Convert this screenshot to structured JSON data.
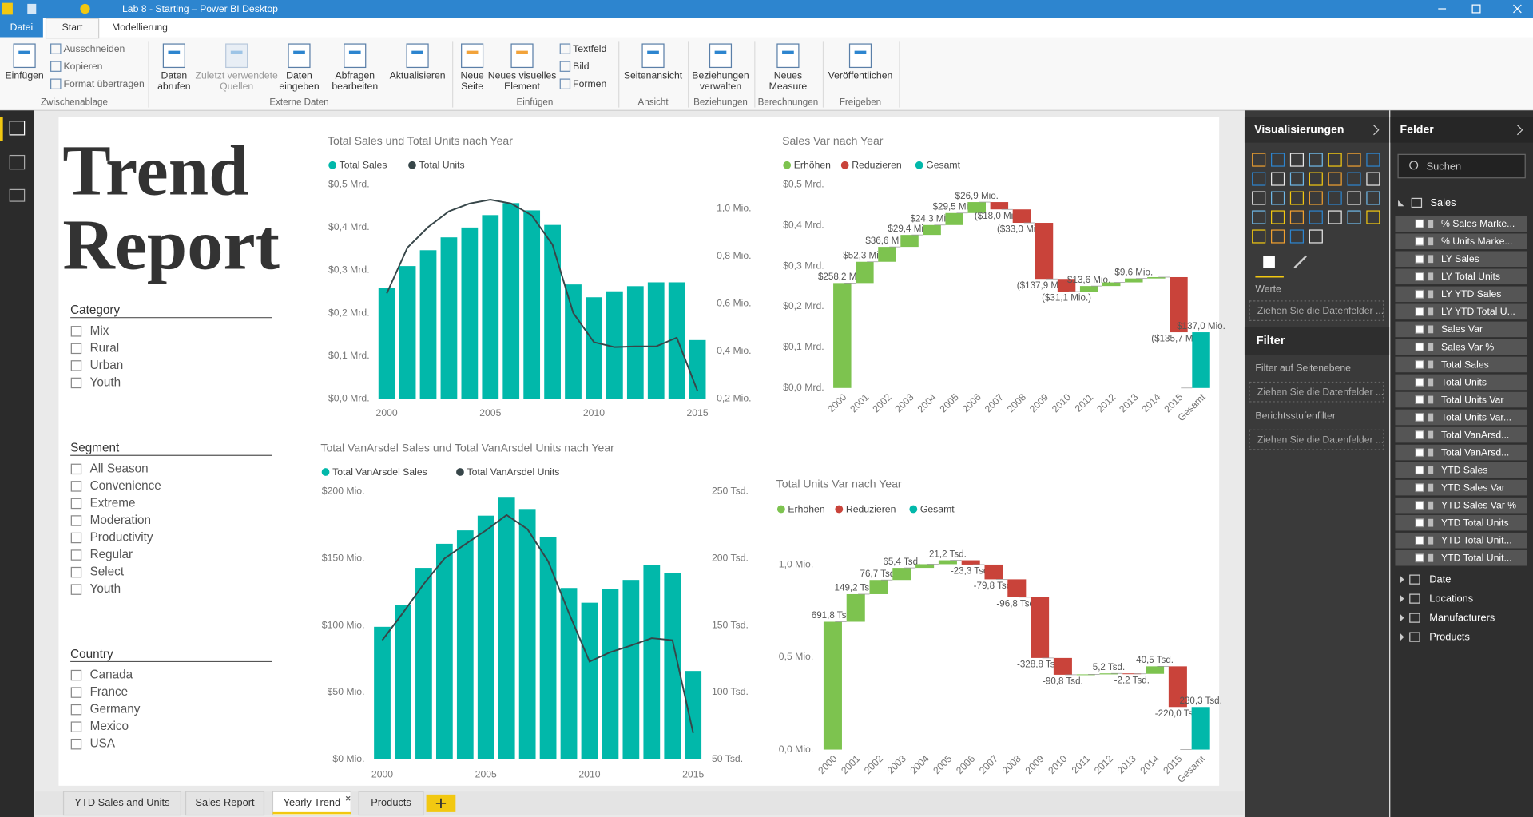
{
  "window": {
    "title": "Lab 8 - Starting – Power BI Desktop"
  },
  "ribbon": {
    "tabs": [
      "Datei",
      "Start",
      "Modellierung"
    ],
    "groups": [
      {
        "label": "Zwischenablage",
        "big": [
          [
            "Einfügen"
          ]
        ],
        "small": [
          "Ausschneiden",
          "Kopieren",
          "Format übertragen"
        ]
      },
      {
        "label": "Externe Daten",
        "big": [
          [
            "Daten",
            "abrufen"
          ],
          [
            "Zuletzt verwendete",
            "Quellen"
          ],
          [
            "Daten",
            "eingeben"
          ],
          [
            "Abfragen",
            "bearbeiten"
          ],
          [
            "Aktualisieren"
          ]
        ]
      },
      {
        "label": "Einfügen",
        "big": [
          [
            "Neue",
            "Seite"
          ],
          [
            "Neues visuelles",
            "Element"
          ]
        ],
        "small": [
          "Textfeld",
          "Bild",
          "Formen"
        ]
      },
      {
        "label": "Ansicht",
        "big": [
          [
            "Seitenansicht"
          ]
        ]
      },
      {
        "label": "Beziehungen",
        "big": [
          [
            "Beziehungen",
            "verwalten"
          ]
        ]
      },
      {
        "label": "Berechnungen",
        "big": [
          [
            "Neues",
            "Measure"
          ]
        ]
      },
      {
        "label": "Freigeben",
        "big": [
          [
            "Veröffentlichen"
          ]
        ]
      }
    ]
  },
  "report": {
    "title": [
      "Trend",
      "Report"
    ],
    "slicers": [
      {
        "title": "Category",
        "items": [
          "Mix",
          "Rural",
          "Urban",
          "Youth"
        ]
      },
      {
        "title": "Segment",
        "items": [
          "All Season",
          "Convenience",
          "Extreme",
          "Moderation",
          "Productivity",
          "Regular",
          "Select",
          "Youth"
        ]
      },
      {
        "title": "Country",
        "items": [
          "Canada",
          "France",
          "Germany",
          "Mexico",
          "USA"
        ]
      }
    ]
  },
  "chart_data": [
    {
      "type": "combo",
      "title": "Total Sales und Total Units nach Year",
      "x": [
        2000,
        2001,
        2002,
        2003,
        2004,
        2005,
        2006,
        2007,
        2008,
        2009,
        2010,
        2011,
        2012,
        2013,
        2014,
        2015
      ],
      "xlim": [
        1999.5,
        2015.5
      ],
      "xticks": [
        2000,
        2005,
        2010,
        2015
      ],
      "ylim": [
        0,
        0.5
      ],
      "yticks": [
        {
          "value": 0,
          "label": "$0,0 Mrd."
        },
        {
          "value": 0.1,
          "label": "$0,1 Mrd."
        },
        {
          "value": 0.2,
          "label": "$0,2 Mrd."
        },
        {
          "value": 0.3,
          "label": "$0,3 Mrd."
        },
        {
          "value": 0.4,
          "label": "$0,4 Mrd."
        },
        {
          "value": 0.5,
          "label": "$0,5 Mrd."
        }
      ],
      "y2lim": [
        0.2,
        1.1
      ],
      "y2ticks": [
        {
          "value": 0.2,
          "label": "0,2 Mio."
        },
        {
          "value": 0.4,
          "label": "0,4 Mio."
        },
        {
          "value": 0.6,
          "label": "0,6 Mio."
        },
        {
          "value": 0.8,
          "label": "0,8 Mio."
        },
        {
          "value": 1.0,
          "label": "1,0 Mio."
        }
      ],
      "grid": false,
      "series": [
        {
          "name": "Total Sales",
          "type": "bar",
          "color": "#01b8aa",
          "values": [
            0.258,
            0.31,
            0.347,
            0.377,
            0.4,
            0.429,
            0.457,
            0.44,
            0.406,
            0.267,
            0.237,
            0.251,
            0.263,
            0.272,
            0.272,
            0.137
          ]
        },
        {
          "name": "Total Units",
          "type": "line",
          "axis": "y2",
          "color": "#374649",
          "values": [
            0.643,
            0.836,
            0.922,
            0.988,
            1.021,
            1.037,
            1.021,
            0.971,
            0.848,
            0.561,
            0.438,
            0.417,
            0.42,
            0.42,
            0.457,
            0.233
          ]
        }
      ]
    },
    {
      "type": "waterfall",
      "title": "Sales Var nach Year",
      "legend": [
        {
          "name": "Erhöhen",
          "color": "#7dc34f"
        },
        {
          "name": "Reduzieren",
          "color": "#c9433a"
        },
        {
          "name": "Gesamt",
          "color": "#01b8aa"
        }
      ],
      "categories": [
        "2000",
        "2001",
        "2002",
        "2003",
        "2004",
        "2005",
        "2006",
        "2007",
        "2008",
        "2009",
        "2010",
        "2011",
        "2012",
        "2013",
        "2014",
        "2015",
        "Gesamt"
      ],
      "values": [
        0.2582,
        0.0523,
        0.0366,
        0.0294,
        0.0243,
        0.0295,
        0.0269,
        -0.018,
        -0.033,
        -0.1379,
        -0.0311,
        0.0136,
        0.009,
        0.0096,
        0.0033,
        -0.1357,
        0.137
      ],
      "value_labels": [
        "$258,2 Mio.",
        "$52,3 Mio.",
        "$36,6 Mio.",
        "$29,4 Mio.",
        "$24,3 Mio.",
        "$29,5 Mio.",
        "$26,9 Mio.",
        "($18,0 Mio.)",
        "($33,0 Mio.)",
        "($137,9 Mio.)",
        "($31,1 Mio.)",
        "$13,6 Mio.",
        null,
        "$9,6 Mio.",
        null,
        "($135,7 Mio.)",
        "$137,0 Mio."
      ],
      "ylim": [
        0,
        0.5
      ],
      "yticks": [
        {
          "value": 0,
          "label": "$0,0 Mrd."
        },
        {
          "value": 0.1,
          "label": "$0,1 Mrd."
        },
        {
          "value": 0.2,
          "label": "$0,2 Mrd."
        },
        {
          "value": 0.3,
          "label": "$0,3 Mrd."
        },
        {
          "value": 0.4,
          "label": "$0,4 Mrd."
        },
        {
          "value": 0.5,
          "label": "$0,5 Mrd."
        }
      ],
      "grid": false
    },
    {
      "type": "combo",
      "title": "Total VanArsdel Sales und Total VanArsdel Units nach Year",
      "x": [
        2000,
        2001,
        2002,
        2003,
        2004,
        2005,
        2006,
        2007,
        2008,
        2009,
        2010,
        2011,
        2012,
        2013,
        2014,
        2015
      ],
      "xlim": [
        1999.5,
        2015.5
      ],
      "xticks": [
        2000,
        2005,
        2010,
        2015
      ],
      "ylim": [
        0,
        200
      ],
      "yticks": [
        {
          "value": 0,
          "label": "$0 Mio."
        },
        {
          "value": 50,
          "label": "$50 Mio."
        },
        {
          "value": 100,
          "label": "$100 Mio."
        },
        {
          "value": 150,
          "label": "$150 Mio."
        },
        {
          "value": 200,
          "label": "$200 Mio."
        }
      ],
      "y2lim": [
        50,
        250
      ],
      "y2ticks": [
        {
          "value": 50,
          "label": "50 Tsd."
        },
        {
          "value": 100,
          "label": "100 Tsd."
        },
        {
          "value": 150,
          "label": "150 Tsd."
        },
        {
          "value": 200,
          "label": "200 Tsd."
        },
        {
          "value": 250,
          "label": "250 Tsd."
        }
      ],
      "grid": false,
      "series": [
        {
          "name": "Total VanArsdel Sales",
          "type": "bar",
          "color": "#01b8aa",
          "values": [
            99,
            115,
            143,
            161,
            171,
            182,
            196,
            187,
            166,
            128,
            117,
            127,
            134,
            145,
            139,
            66
          ]
        },
        {
          "name": "Total VanArsdel Units",
          "type": "line",
          "axis": "y2",
          "color": "#374649",
          "values": [
            139,
            159.5,
            181,
            200,
            210.6,
            221,
            232.5,
            222,
            198,
            159.5,
            123,
            130,
            135,
            140.5,
            139,
            69.7
          ]
        }
      ]
    },
    {
      "type": "waterfall",
      "title": "Total Units Var nach Year",
      "legend": [
        {
          "name": "Erhöhen",
          "color": "#7dc34f"
        },
        {
          "name": "Reduzieren",
          "color": "#c9433a"
        },
        {
          "name": "Gesamt",
          "color": "#01b8aa"
        }
      ],
      "categories": [
        "2000",
        "2001",
        "2002",
        "2003",
        "2004",
        "2005",
        "2006",
        "2007",
        "2008",
        "2009",
        "2010",
        "2011",
        "2012",
        "2013",
        "2014",
        "2015",
        "Gesamt"
      ],
      "values": [
        0.6918,
        0.1492,
        0.0767,
        0.0654,
        0.02,
        0.0212,
        -0.0233,
        -0.0798,
        -0.0968,
        -0.3288,
        -0.0908,
        0.002,
        0.0052,
        -0.0022,
        0.0405,
        -0.22,
        0.2303
      ],
      "value_labels": [
        "691,8 Tsd.",
        "149,2 Tsd.",
        "76,7 Tsd.",
        "65,4 Tsd.",
        null,
        "21,2 Tsd.",
        "-23,3 Tsd.",
        "-79,8 Tsd.",
        "-96,8 Tsd.",
        "-328,8 Tsd.",
        "-90,8 Tsd.",
        null,
        "5,2 Tsd.",
        "-2,2 Tsd.",
        "40,5 Tsd.",
        "-220,0 Tsd.",
        "230,3 Tsd."
      ],
      "ylim": [
        0,
        1.1
      ],
      "yticks": [
        {
          "value": 0,
          "label": "0,0 Mio."
        },
        {
          "value": 0.5,
          "label": "0,5 Mio."
        },
        {
          "value": 1.0,
          "label": "1,0 Mio."
        }
      ],
      "grid": false
    }
  ],
  "visualizations": {
    "title": "Visualisierungen",
    "values_label": "Werte",
    "drop_hint": "Ziehen Sie die Datenfelder ...",
    "filter_title": "Filter",
    "page_filter": "Filter auf Seitenebene",
    "page_drop": "Ziehen Sie die Datenfelder ...",
    "report_filter": "Berichtsstufenfilter",
    "report_drop": "Ziehen Sie die Datenfelder ..."
  },
  "fields": {
    "title": "Felder",
    "search": "Suchen",
    "table": "Sales",
    "items": [
      "% Sales Marke...",
      "% Units Marke...",
      "LY Sales",
      "LY Total Units",
      "LY YTD Sales",
      "LY YTD Total U...",
      "Sales Var",
      "Sales Var %",
      "Total Sales",
      "Total Units",
      "Total Units Var",
      "Total Units Var...",
      "Total VanArsd...",
      "Total VanArsd...",
      "YTD Sales",
      "YTD Sales Var",
      "YTD Sales Var %",
      "YTD Total Units",
      "YTD Total Unit...",
      "YTD Total Unit..."
    ],
    "tables": [
      "Date",
      "Locations",
      "Manufacturers",
      "Products"
    ]
  },
  "page_tabs": {
    "tabs": [
      "YTD Sales and Units",
      "Sales Report",
      "Yearly Trend",
      "Products"
    ],
    "active": 2
  }
}
